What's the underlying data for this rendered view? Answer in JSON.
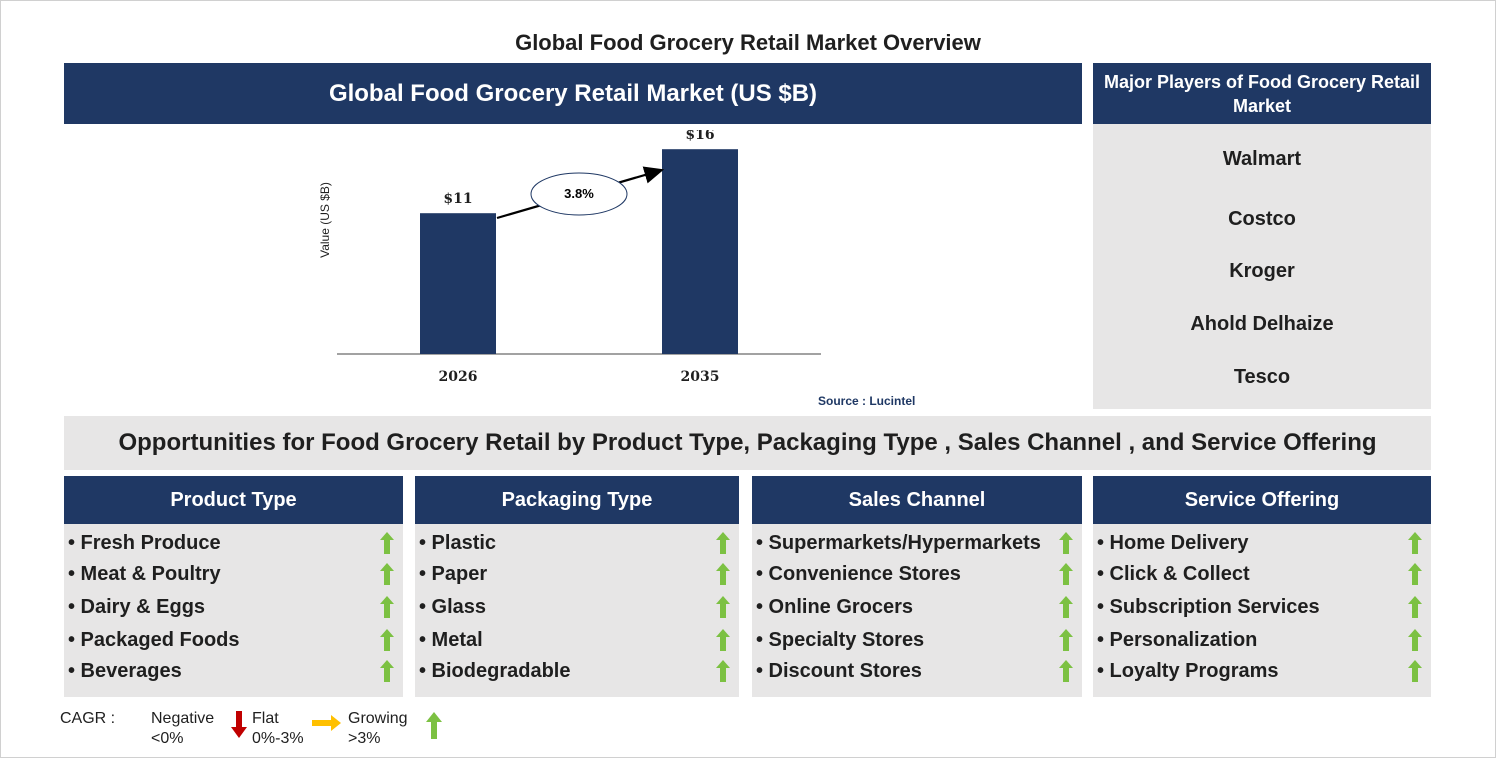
{
  "title": "Global Food Grocery Retail Market Overview",
  "chart_data": {
    "type": "bar",
    "title": "Global Food Grocery Retail Market (US $B)",
    "ylabel": "Value (US $B)",
    "xlabel": "",
    "categories": [
      "2026",
      "2035"
    ],
    "values": [
      11,
      16
    ],
    "data_labels": [
      "$11",
      "$16"
    ],
    "ylim": [
      0,
      17.5
    ],
    "bar_color": "#1f3864",
    "annotation": {
      "text": "3.8%",
      "type": "growth-arrow"
    },
    "grid": false,
    "source": "Source : Lucintel"
  },
  "players": {
    "header": "Major Players of Food Grocery Retail Market",
    "items": [
      "Walmart",
      "Costco",
      "Kroger",
      "Ahold Delhaize",
      "Tesco"
    ]
  },
  "opportunities_title": "Opportunities for Food Grocery Retail by Product Type, Packaging Type , Sales Channel , and Service Offering",
  "segments": [
    {
      "header": "Product Type",
      "items": [
        "• Fresh Produce",
        "• Meat & Poultry",
        "• Dairy & Eggs",
        "• Packaged Foods",
        "• Beverages"
      ]
    },
    {
      "header": "Packaging Type",
      "items": [
        "• Plastic",
        "• Paper",
        "• Glass",
        "• Metal",
        "• Biodegradable"
      ]
    },
    {
      "header": "Sales Channel",
      "items": [
        "• Supermarkets/Hypermarkets",
        "• Convenience Stores",
        "• Online Grocers",
        "• Specialty Stores",
        "• Discount Stores"
      ]
    },
    {
      "header": "Service Offering",
      "items": [
        "• Home Delivery",
        "• Click & Collect",
        "• Subscription Services",
        "• Personalization",
        "• Loyalty Programs"
      ]
    }
  ],
  "legend": {
    "label": "CAGR :",
    "negative": [
      "Negative",
      "<0%"
    ],
    "flat": [
      "Flat",
      "0%-3%"
    ],
    "growing": [
      "Growing",
      ">3%"
    ]
  },
  "colors": {
    "navy": "#1f3864",
    "panel_gray": "#e7e6e6",
    "growing_arrow": "#7cc142",
    "negative_arrow": "#c00000",
    "flat_arrow": "#ffc000"
  },
  "icons": {
    "growth": "up-arrow-icon",
    "negative": "down-arrow-icon",
    "flat": "right-arrow-icon"
  }
}
